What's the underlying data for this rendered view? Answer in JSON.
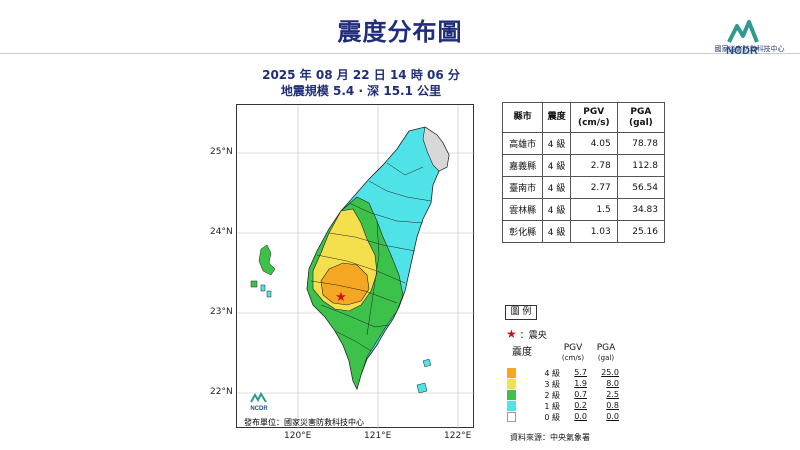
{
  "page": {
    "title": "震度分布圖"
  },
  "logo": {
    "text": "NCDR",
    "org": "國家災害防救科技中心"
  },
  "event": {
    "datetime": "2025 年 08 月 22 日 14 時 06 分",
    "magnitude_depth": "地震規模 5.4 · 深 15.1 公里"
  },
  "map": {
    "lat_labels": [
      "25°N",
      "24°N",
      "23°N",
      "22°N"
    ],
    "lon_labels": [
      "120°E",
      "121°E",
      "122°E"
    ],
    "publisher": "發布單位：國家災害防救科技中心",
    "mini_logo": "NCDR"
  },
  "table": {
    "headers": [
      "縣市",
      "震度",
      "PGV\n(cm/s)",
      "PGA\n(gal)"
    ],
    "header_county": "縣市",
    "header_intensity": "震度",
    "header_pgv": "PGV",
    "header_pgv_unit": "(cm/s)",
    "header_pga": "PGA",
    "header_pga_unit": "(gal)",
    "rows": [
      {
        "county": "高雄市",
        "intensity": "4 級",
        "pgv": "4.05",
        "pga": "78.78"
      },
      {
        "county": "嘉義縣",
        "intensity": "4 級",
        "pgv": "2.78",
        "pga": "112.8"
      },
      {
        "county": "臺南市",
        "intensity": "4 級",
        "pgv": "2.77",
        "pga": "56.54"
      },
      {
        "county": "雲林縣",
        "intensity": "4 級",
        "pgv": "1.5",
        "pga": "34.83"
      },
      {
        "county": "彰化縣",
        "intensity": "4 級",
        "pgv": "1.03",
        "pga": "25.16"
      }
    ]
  },
  "legend": {
    "title": "圖 例",
    "epicenter": "震央",
    "intensity_label": "震度",
    "pgv_label": "PGV",
    "pgv_unit": "(cm/s)",
    "pga_label": "PGA",
    "pga_unit": "(gal)",
    "rows": [
      {
        "level": "4 級",
        "pgv": "5.7",
        "pga": "25.0",
        "color": "#f5a623"
      },
      {
        "level": "3 級",
        "pgv": "1.9",
        "pga": "8.0",
        "color": "#f4e04d"
      },
      {
        "level": "2 級",
        "pgv": "0.7",
        "pga": "2.5",
        "color": "#3cc24a"
      },
      {
        "level": "1 級",
        "pgv": "0.2",
        "pga": "0.8",
        "color": "#4fe3e8"
      },
      {
        "level": "0 級",
        "pgv": "0.0",
        "pga": "0.0",
        "color": "#ffffff"
      }
    ],
    "source": "資料來源：中央氣象署"
  },
  "colors": {
    "title": "#1f2d7a",
    "intensity4": "#f5a623",
    "intensity3": "#f4e04d",
    "intensity2": "#3cc24a",
    "intensity1": "#4fe3e8",
    "no_data": "#d8d8d8",
    "epicenter": "#c4161c"
  }
}
